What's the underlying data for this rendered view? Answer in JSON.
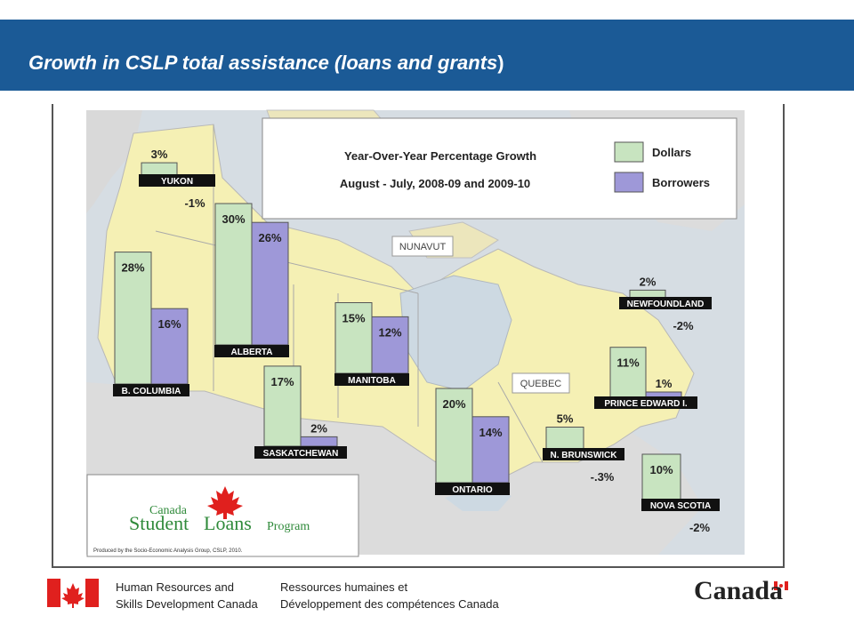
{
  "slide": {
    "title": "Growth in CSLP total assistance (loans and grants",
    "title_close": ")"
  },
  "chart_data": {
    "type": "bar",
    "title": "Year-Over-Year  Percentage Growth",
    "subtitle": "August - July, 2008-09 and 2009-10",
    "legend": {
      "placement": "top-right",
      "entries": [
        "Dollars",
        "Borrowers"
      ]
    },
    "colors": {
      "Dollars": "#c8e4c0",
      "Borrowers": "#9e98d8"
    },
    "series": [
      {
        "name": "Dollars",
        "values": [
          3,
          28,
          30,
          17,
          15,
          20,
          5,
          11,
          10,
          2
        ]
      },
      {
        "name": "Borrowers",
        "values": [
          -1,
          16,
          26,
          2,
          12,
          14,
          -0.3,
          1,
          -2,
          -2
        ]
      }
    ],
    "categories": [
      "YUKON",
      "B. COLUMBIA",
      "ALBERTA",
      "SASKATCHEWAN",
      "MANITOBA",
      "ONTARIO",
      "N. BRUNSWICK",
      "PRINCE EDWARD I.",
      "NOVA SCOTIA",
      "NEWFOUNDLAND"
    ],
    "value_labels": {
      "Dollars": [
        "3%",
        "28%",
        "30%",
        "17%",
        "15%",
        "20%",
        "5%",
        "11%",
        "10%",
        "2%"
      ],
      "Borrowers": [
        "-1%",
        "16%",
        "26%",
        "2%",
        "12%",
        "14%",
        "-.3%",
        "1%",
        "-2%",
        "-2%"
      ]
    },
    "map_labels": [
      "NUNAVUT",
      "QUEBEC"
    ]
  },
  "logo": {
    "line1": "Canada",
    "line2a": "Student",
    "line2b": "Loans",
    "line2c": "Program",
    "credit": "Produced by the Socio-Economic Analysis Group, CSLP, 2010."
  },
  "footer": {
    "en_line1": "Human Resources and",
    "en_line2": "Skills Development Canada",
    "fr_line1": "Ressources humaines et",
    "fr_line2": "Développement des compétences Canada",
    "wordmark": "Canada"
  }
}
